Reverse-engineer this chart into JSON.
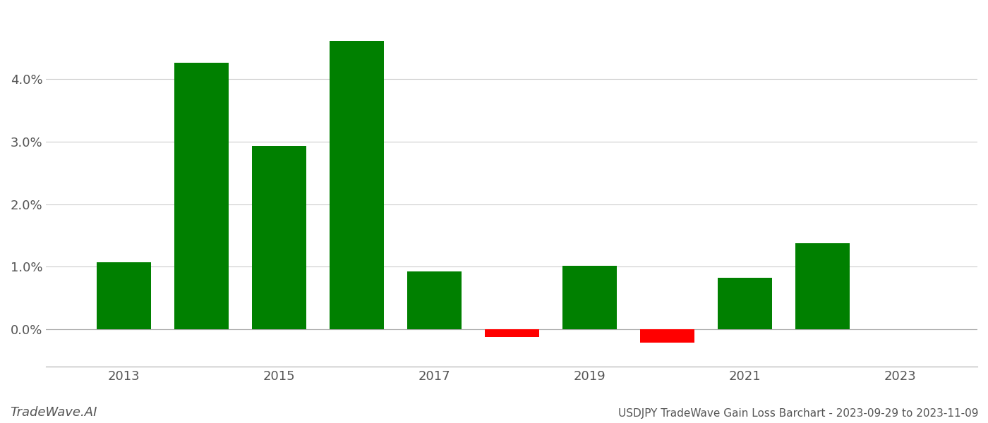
{
  "years": [
    2013,
    2014,
    2015,
    2016,
    2017,
    2018,
    2019,
    2020,
    2021,
    2022,
    2023
  ],
  "values": [
    0.0107,
    0.0427,
    0.0293,
    0.0462,
    0.0092,
    -0.0013,
    0.0102,
    -0.0022,
    0.0082,
    0.0138,
    0.0
  ],
  "bar_width": 0.7,
  "positive_color": "#008000",
  "negative_color": "#ff0000",
  "background_color": "#ffffff",
  "grid_color": "#cccccc",
  "title": "USDJPY TradeWave Gain Loss Barchart - 2023-09-29 to 2023-11-09",
  "watermark": "TradeWave.AI",
  "ylim_min": -0.006,
  "ylim_max": 0.051,
  "yticks": [
    0.0,
    0.01,
    0.02,
    0.03,
    0.04
  ],
  "xticks": [
    2013,
    2015,
    2017,
    2019,
    2021,
    2023
  ],
  "xlabel_fontsize": 13,
  "ylabel_fontsize": 13,
  "title_fontsize": 11,
  "watermark_fontsize": 13
}
